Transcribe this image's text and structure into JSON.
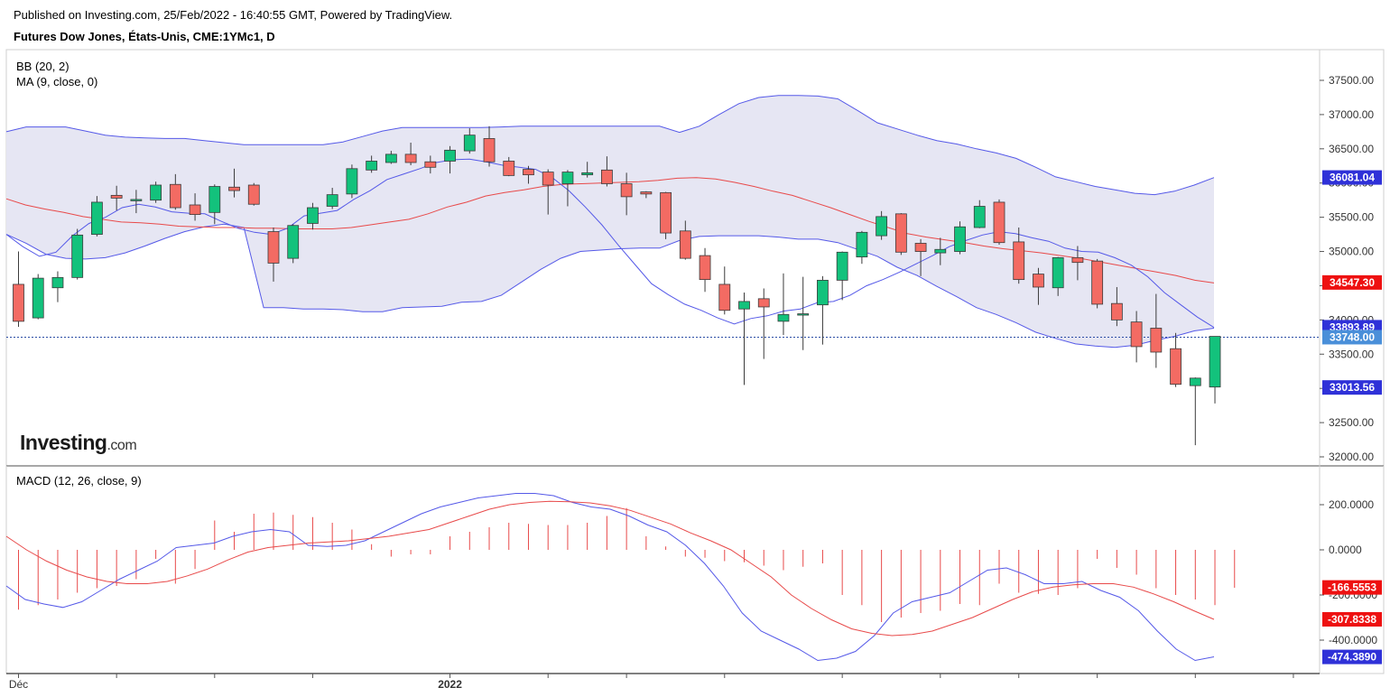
{
  "header": {
    "published": "Published on Investing.com, 25/Feb/2022 - 16:40:55 GMT, Powered by TradingView.",
    "instrument": "Futures Dow Jones, États-Unis, CME:1YMc1, D"
  },
  "logo": {
    "brand": "Investing",
    "suffix": ".com"
  },
  "colors": {
    "up": "#13c27c",
    "down": "#f36b63",
    "bb_line": "#5559e8",
    "bb_fill": "#e6e6f3",
    "ma_line": "#e84a4a",
    "macd_line": "#5559e8",
    "signal_line": "#e84a4a",
    "hist": "#e84a4a",
    "last_line": "#2c4da5"
  },
  "chart_data": [
    {
      "type": "candlestick",
      "title": "Futures Dow Jones, États-Unis, CME:1YMc1, D",
      "indicators": [
        "BB (20, 2)",
        "MA (9, close, 0)"
      ],
      "ylim": [
        31900,
        37800
      ],
      "y_ticks": [
        32000,
        32500,
        33000,
        33500,
        34000,
        34500,
        35000,
        35500,
        36000,
        36500,
        37000,
        37500
      ],
      "y_tick_labels": [
        "32000.00",
        "32500.00",
        "33000.00",
        "33500.00",
        "34000.00",
        "34500.00",
        "35000.00",
        "35500.00",
        "36000.00",
        "36500.00",
        "37000.00",
        "37500.00"
      ],
      "x_labels": [
        {
          "index": 0,
          "label": "Déc"
        },
        {
          "index": 22,
          "label": "2022"
        }
      ],
      "x_gridlines": [
        0,
        5,
        10,
        15,
        22,
        27,
        31,
        36,
        42,
        47,
        51,
        55,
        60,
        65,
        70
      ],
      "candles": [
        {
          "o": 34520,
          "h": 35000,
          "l": 33900,
          "c": 33980
        },
        {
          "o": 34030,
          "h": 34670,
          "l": 34010,
          "c": 34610
        },
        {
          "o": 34470,
          "h": 34710,
          "l": 34260,
          "c": 34620
        },
        {
          "o": 34620,
          "h": 35330,
          "l": 34590,
          "c": 35240
        },
        {
          "o": 35250,
          "h": 35810,
          "l": 35220,
          "c": 35720
        },
        {
          "o": 35820,
          "h": 35960,
          "l": 35600,
          "c": 35780
        },
        {
          "o": 35760,
          "h": 35900,
          "l": 35560,
          "c": 35760
        },
        {
          "o": 35750,
          "h": 36020,
          "l": 35710,
          "c": 35970
        },
        {
          "o": 35980,
          "h": 36130,
          "l": 35610,
          "c": 35640
        },
        {
          "o": 35680,
          "h": 35850,
          "l": 35450,
          "c": 35540
        },
        {
          "o": 35570,
          "h": 35980,
          "l": 35400,
          "c": 35950
        },
        {
          "o": 35940,
          "h": 36210,
          "l": 35790,
          "c": 35890
        },
        {
          "o": 35970,
          "h": 36000,
          "l": 35670,
          "c": 35690
        },
        {
          "o": 35290,
          "h": 35350,
          "l": 34560,
          "c": 34830
        },
        {
          "o": 34900,
          "h": 35400,
          "l": 34830,
          "c": 35380
        },
        {
          "o": 35410,
          "h": 35710,
          "l": 35320,
          "c": 35640
        },
        {
          "o": 35660,
          "h": 35930,
          "l": 35620,
          "c": 35830
        },
        {
          "o": 35840,
          "h": 36270,
          "l": 35780,
          "c": 36210
        },
        {
          "o": 36190,
          "h": 36400,
          "l": 36150,
          "c": 36320
        },
        {
          "o": 36300,
          "h": 36470,
          "l": 36280,
          "c": 36420
        },
        {
          "o": 36420,
          "h": 36590,
          "l": 36260,
          "c": 36300
        },
        {
          "o": 36310,
          "h": 36400,
          "l": 36140,
          "c": 36230
        },
        {
          "o": 36320,
          "h": 36540,
          "l": 36140,
          "c": 36480
        },
        {
          "o": 36470,
          "h": 36800,
          "l": 36430,
          "c": 36700
        },
        {
          "o": 36650,
          "h": 36830,
          "l": 36240,
          "c": 36310
        },
        {
          "o": 36320,
          "h": 36380,
          "l": 36100,
          "c": 36110
        },
        {
          "o": 36200,
          "h": 36250,
          "l": 35990,
          "c": 36120
        },
        {
          "o": 36160,
          "h": 36200,
          "l": 35540,
          "c": 35970
        },
        {
          "o": 35990,
          "h": 36190,
          "l": 35660,
          "c": 36160
        },
        {
          "o": 36120,
          "h": 36310,
          "l": 36080,
          "c": 36150
        },
        {
          "o": 36190,
          "h": 36390,
          "l": 35950,
          "c": 35990
        },
        {
          "o": 35990,
          "h": 36150,
          "l": 35530,
          "c": 35800
        },
        {
          "o": 35870,
          "h": 35880,
          "l": 35780,
          "c": 35840
        },
        {
          "o": 35860,
          "h": 35870,
          "l": 35180,
          "c": 35270
        },
        {
          "o": 35300,
          "h": 35450,
          "l": 34880,
          "c": 34900
        },
        {
          "o": 34940,
          "h": 35050,
          "l": 34410,
          "c": 34590
        },
        {
          "o": 34520,
          "h": 34780,
          "l": 34080,
          "c": 34140
        },
        {
          "o": 34160,
          "h": 34400,
          "l": 33050,
          "c": 34270
        },
        {
          "o": 34310,
          "h": 34460,
          "l": 33430,
          "c": 34190
        },
        {
          "o": 33980,
          "h": 34680,
          "l": 33780,
          "c": 34080
        },
        {
          "o": 34070,
          "h": 34630,
          "l": 33560,
          "c": 34090
        },
        {
          "o": 34220,
          "h": 34640,
          "l": 33640,
          "c": 34580
        },
        {
          "o": 34580,
          "h": 35000,
          "l": 34290,
          "c": 34990
        },
        {
          "o": 34920,
          "h": 35300,
          "l": 34820,
          "c": 35280
        },
        {
          "o": 35230,
          "h": 35590,
          "l": 35170,
          "c": 35510
        },
        {
          "o": 35550,
          "h": 35560,
          "l": 34950,
          "c": 34990
        },
        {
          "o": 35120,
          "h": 35180,
          "l": 34640,
          "c": 35000
        },
        {
          "o": 34980,
          "h": 35200,
          "l": 34800,
          "c": 35030
        },
        {
          "o": 35000,
          "h": 35440,
          "l": 34960,
          "c": 35360
        },
        {
          "o": 35350,
          "h": 35750,
          "l": 35340,
          "c": 35660
        },
        {
          "o": 35720,
          "h": 35760,
          "l": 35100,
          "c": 35130
        },
        {
          "o": 35140,
          "h": 35350,
          "l": 34530,
          "c": 34590
        },
        {
          "o": 34670,
          "h": 34760,
          "l": 34220,
          "c": 34480
        },
        {
          "o": 34470,
          "h": 34920,
          "l": 34350,
          "c": 34910
        },
        {
          "o": 34910,
          "h": 35080,
          "l": 34580,
          "c": 34840
        },
        {
          "o": 34860,
          "h": 34890,
          "l": 34170,
          "c": 34230
        },
        {
          "o": 34240,
          "h": 34480,
          "l": 33910,
          "c": 34000
        },
        {
          "o": 33970,
          "h": 34130,
          "l": 33380,
          "c": 33610
        },
        {
          "o": 33880,
          "h": 34380,
          "l": 33300,
          "c": 33530
        },
        {
          "o": 33580,
          "h": 33810,
          "l": 33020,
          "c": 33060
        },
        {
          "o": 33040,
          "h": 33160,
          "l": 32170,
          "c": 33150
        },
        {
          "o": 33020,
          "h": 33750,
          "l": 32780,
          "c": 33760
        }
      ],
      "bb_upper": [
        36750,
        36820,
        36820,
        36820,
        36760,
        36700,
        36670,
        36660,
        36650,
        36650,
        36620,
        36590,
        36560,
        36560,
        36560,
        36560,
        36560,
        36600,
        36680,
        36760,
        36810,
        36810,
        36810,
        36810,
        36810,
        36820,
        36830,
        36830,
        36830,
        36830,
        36830,
        36830,
        36830,
        36830,
        36740,
        36830,
        37000,
        37160,
        37250,
        37280,
        37280,
        37270,
        37230,
        37060,
        36880,
        36790,
        36700,
        36620,
        36570,
        36500,
        36440,
        36360,
        36230,
        36090,
        36020,
        35950,
        35900,
        35850,
        35830,
        35880,
        35970,
        36080
      ],
      "bb_lower": [
        35250,
        35120,
        34960,
        34900,
        34890,
        34910,
        34980,
        35080,
        35190,
        35290,
        35360,
        35400,
        35350,
        34180,
        34180,
        34160,
        34160,
        34150,
        34120,
        34120,
        34180,
        34190,
        34200,
        34260,
        34270,
        34360,
        34550,
        34740,
        34900,
        35000,
        35020,
        35040,
        35050,
        35050,
        35160,
        35220,
        35230,
        35230,
        35230,
        35210,
        35180,
        35180,
        35130,
        35030,
        34930,
        34770,
        34650,
        34490,
        34340,
        34180,
        34080,
        33960,
        33820,
        33730,
        33650,
        33620,
        33600,
        33630,
        33700,
        33760,
        33840,
        33880,
        33910,
        33910,
        33900
      ],
      "bb_middle": [
        35770,
        35680,
        35620,
        35570,
        35510,
        35470,
        35430,
        35420,
        35400,
        35370,
        35360,
        35350,
        35350,
        35340,
        35340,
        35330,
        35330,
        35330,
        35350,
        35390,
        35430,
        35470,
        35550,
        35650,
        35720,
        35810,
        35860,
        35900,
        35950,
        35980,
        35990,
        36000,
        36010,
        36020,
        36040,
        36070,
        36080,
        36060,
        36010,
        35950,
        35880,
        35820,
        35730,
        35640,
        35540,
        35440,
        35350,
        35260,
        35210,
        35170,
        35130,
        35080,
        35040,
        35010,
        34980,
        34940,
        34900,
        34850,
        34800,
        34750,
        34700,
        34650,
        34580,
        34540
      ],
      "ma9": [
        35250,
        35070,
        34930,
        34990,
        35230,
        35410,
        35500,
        35640,
        35690,
        35650,
        35580,
        35560,
        35550,
        35440,
        35340,
        35280,
        35250,
        35340,
        35520,
        35560,
        35600,
        35760,
        35890,
        36050,
        36130,
        36210,
        36300,
        36340,
        36350,
        36310,
        36260,
        36230,
        36200,
        36080,
        35890,
        35650,
        35390,
        35090,
        34810,
        34530,
        34370,
        34230,
        34140,
        34030,
        33940,
        34020,
        34060,
        34130,
        34160,
        34250,
        34270,
        34360,
        34500,
        34590,
        34700,
        34820,
        34940,
        35070,
        35160,
        35240,
        35290,
        35260,
        35200,
        35150,
        35050,
        35000,
        34990,
        34910,
        34800,
        34630,
        34400,
        34220,
        34040,
        33890
      ],
      "last_price_line": 33748,
      "price_labels": [
        {
          "value": 36081.04,
          "text": "36081.04",
          "bg": "#2f31d8"
        },
        {
          "value": 34547.3,
          "text": "34547.30",
          "bg": "#ee1111"
        },
        {
          "value": 33893.89,
          "text": "33893.89",
          "bg": "#2f31d8"
        },
        {
          "value": 33748.0,
          "text": "33748.00",
          "bg": "#4a8fd9"
        },
        {
          "value": 33013.56,
          "text": "33013.56",
          "bg": "#2f31d8"
        }
      ]
    },
    {
      "type": "macd",
      "indicator_label": "MACD (12, 26, close, 9)",
      "ylim": [
        -560,
        300
      ],
      "y_ticks": [
        -400,
        -200,
        0,
        200
      ],
      "y_tick_labels": [
        "-400.0000",
        "-200.0000",
        "0.0000",
        "200.0000"
      ],
      "macd": [
        -160,
        -220,
        -240,
        -255,
        -230,
        -180,
        -130,
        -90,
        -50,
        10,
        20,
        30,
        60,
        80,
        90,
        80,
        20,
        15,
        20,
        40,
        80,
        120,
        160,
        190,
        210,
        230,
        240,
        250,
        250,
        240,
        210,
        190,
        180,
        150,
        110,
        80,
        20,
        -60,
        -160,
        -280,
        -360,
        -400,
        -440,
        -490,
        -480,
        -450,
        -380,
        -280,
        -230,
        -210,
        -190,
        -140,
        -90,
        -80,
        -110,
        -150,
        -150,
        -140,
        -180,
        -210,
        -270,
        -360,
        -440,
        -490,
        -474
      ],
      "signal": [
        60,
        0,
        -50,
        -90,
        -120,
        -140,
        -150,
        -150,
        -140,
        -115,
        -85,
        -45,
        -10,
        10,
        20,
        30,
        35,
        40,
        50,
        60,
        75,
        90,
        120,
        150,
        180,
        200,
        210,
        215,
        213,
        208,
        195,
        175,
        145,
        115,
        75,
        40,
        0,
        -60,
        -120,
        -200,
        -260,
        -310,
        -350,
        -370,
        -380,
        -375,
        -360,
        -330,
        -300,
        -260,
        -220,
        -185,
        -165,
        -155,
        -150,
        -150,
        -165,
        -195,
        -230,
        -270,
        -308
      ],
      "histogram": [
        -265,
        -245,
        -220,
        -190,
        -170,
        -160,
        -130,
        -40,
        -150,
        -85,
        130,
        80,
        160,
        165,
        155,
        145,
        120,
        90,
        25,
        -30,
        -20,
        -20,
        60,
        80,
        100,
        120,
        115,
        110,
        110,
        120,
        150,
        185,
        60,
        15,
        -30,
        -35,
        -50,
        -55,
        -70,
        -90,
        -75,
        -60,
        -200,
        -245,
        -320,
        -300,
        -280,
        -270,
        -240,
        -245,
        -150,
        -190,
        -195,
        -200,
        -170,
        -40,
        -80,
        -110,
        -170,
        -200,
        -220,
        -245,
        -168
      ],
      "price_labels": [
        {
          "value": -166.5553,
          "text": "-166.5553",
          "bg": "#ee1111"
        },
        {
          "value": -307.8338,
          "text": "-307.8338",
          "bg": "#ee1111"
        },
        {
          "value": -474.389,
          "text": "-474.3890",
          "bg": "#2f31d8"
        }
      ]
    }
  ]
}
